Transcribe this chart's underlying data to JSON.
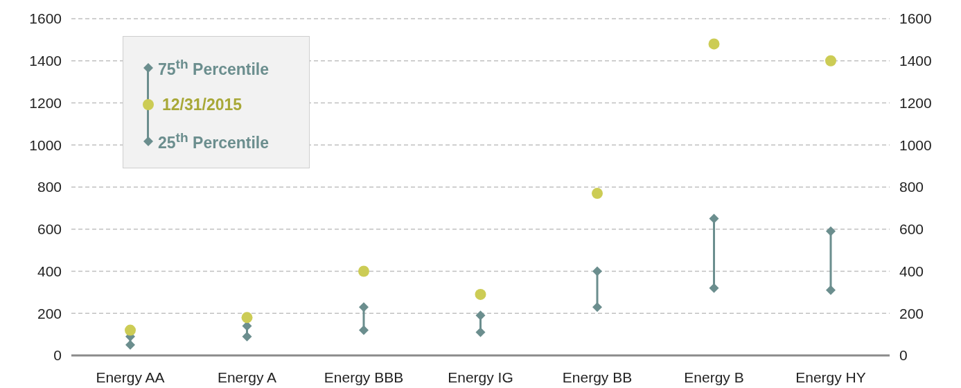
{
  "chart_data": {
    "type": "scatter",
    "categories": [
      "Energy AA",
      "Energy A",
      "Energy BBB",
      "Energy IG",
      "Energy BB",
      "Energy B",
      "Energy HY"
    ],
    "series": [
      {
        "name": "75$^{th}$ Percentile",
        "color": "#6b8e8e",
        "marker": "diamond",
        "values": [
          90,
          140,
          230,
          190,
          400,
          650,
          590
        ]
      },
      {
        "name": "12/31/2015",
        "color": "#cccc55",
        "marker": "circle",
        "values": [
          120,
          180,
          400,
          290,
          770,
          1480,
          1400
        ]
      },
      {
        "name": "25$^{th}$ Percentile",
        "color": "#6b8e8e",
        "marker": "diamond",
        "values": [
          50,
          90,
          120,
          110,
          230,
          320,
          310
        ]
      }
    ],
    "ylim": [
      0,
      1600
    ],
    "yticks": [
      0,
      200,
      400,
      600,
      800,
      1000,
      1200,
      1400,
      1600
    ],
    "y2lim": [
      0,
      1600
    ],
    "y2ticks": [
      0,
      200,
      400,
      600,
      800,
      1000,
      1200,
      1400,
      1600
    ],
    "grid": "y",
    "legend": "top left"
  }
}
